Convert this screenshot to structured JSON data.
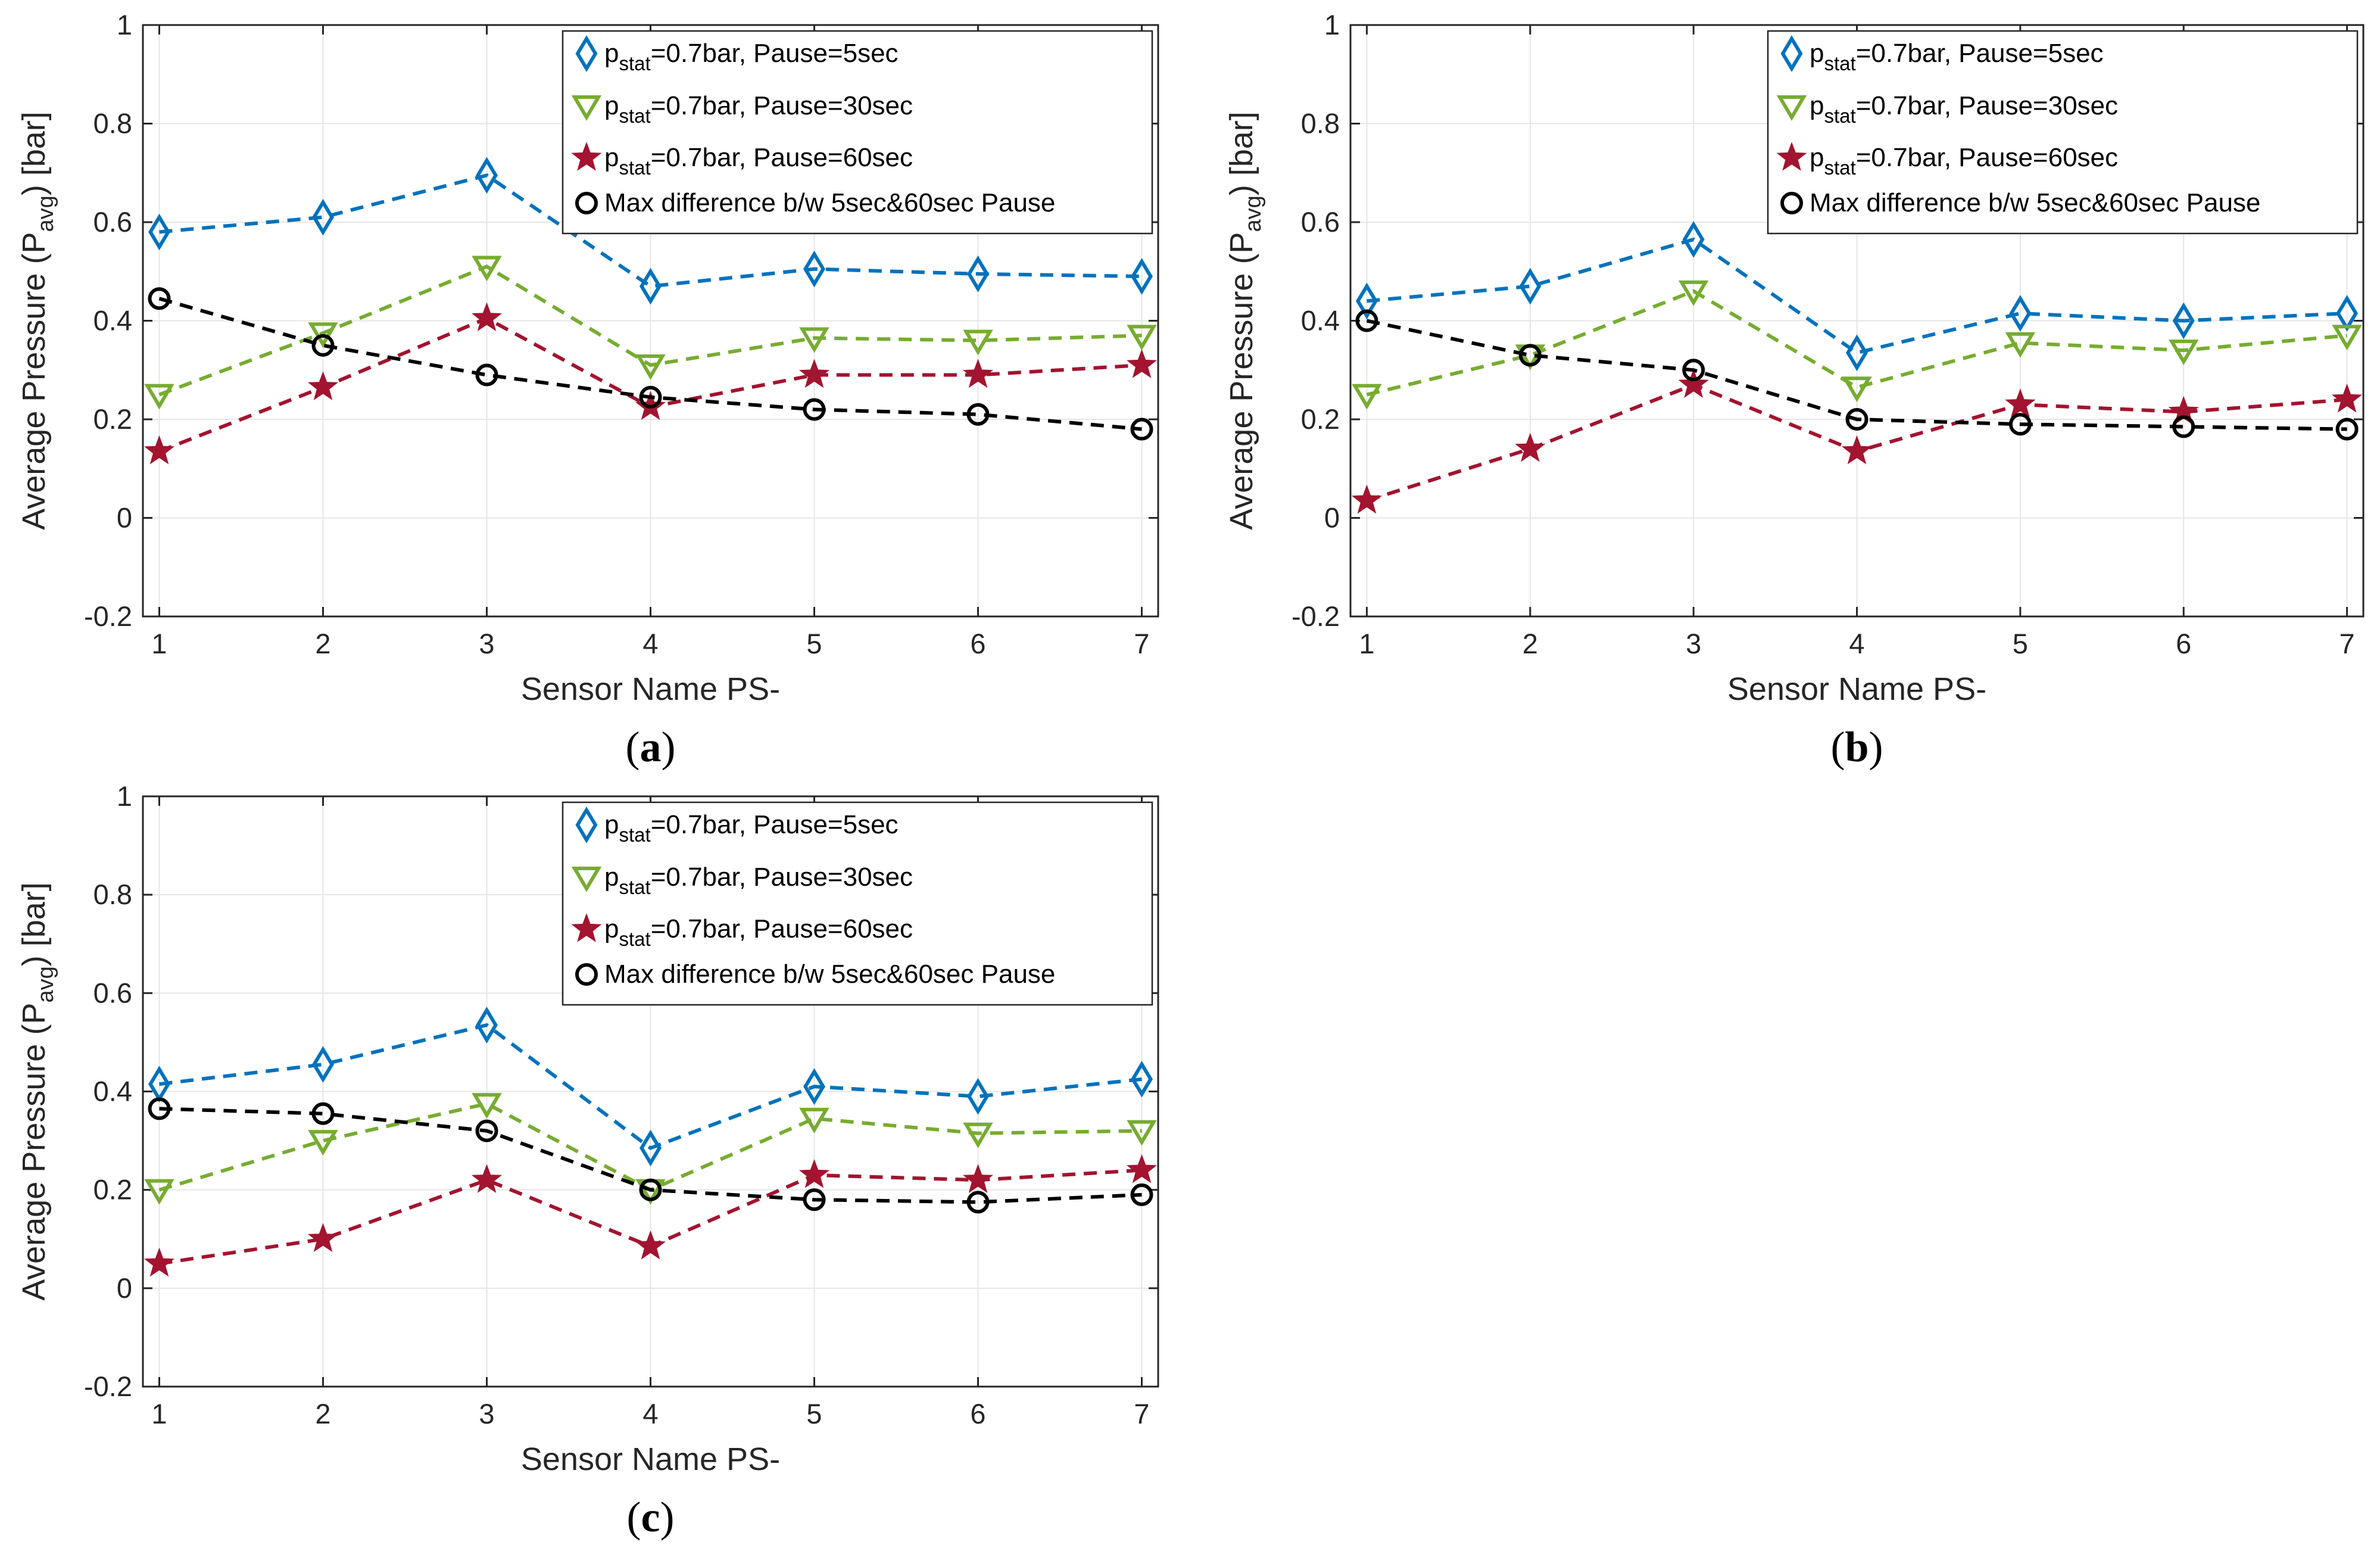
{
  "figure": {
    "series_styles": [
      {
        "color": "#0072BD",
        "marker": "diamond"
      },
      {
        "color": "#77AC30",
        "marker": "triangle-down"
      },
      {
        "color": "#A2142F",
        "marker": "star"
      },
      {
        "color": "#000000",
        "marker": "circle"
      }
    ],
    "legend_placement": "top-right",
    "grid": true,
    "line_style": "dashed"
  },
  "chart_data": [
    {
      "type": "line",
      "caption": "a",
      "xlabel": "Sensor Name PS-",
      "ylabel": {
        "main": "Average Pressure (P",
        "sub": "avg",
        "end": ") [bar]"
      },
      "x": [
        1,
        2,
        3,
        4,
        5,
        6,
        7
      ],
      "xticks": [
        "1",
        "2",
        "3",
        "4",
        "5",
        "6",
        "7"
      ],
      "yticks": [
        "-0.2",
        "0",
        "0.2",
        "0.4",
        "0.6",
        "0.8",
        "1"
      ],
      "xlim": [
        0.9,
        7.1
      ],
      "ylim": [
        -0.2,
        1
      ],
      "series": [
        {
          "name": "p_stat=0.7bar, Pause=5sec",
          "legend": {
            "pre": "p",
            "sub": "stat",
            "post": "=0.7bar, Pause=5sec"
          },
          "values": [
            0.58,
            0.61,
            0.695,
            0.47,
            0.505,
            0.495,
            0.49
          ]
        },
        {
          "name": "p_stat=0.7bar, Pause=30sec",
          "legend": {
            "pre": "p",
            "sub": "stat",
            "post": "=0.7bar, Pause=30sec"
          },
          "values": [
            0.25,
            0.375,
            0.51,
            0.31,
            0.365,
            0.36,
            0.37
          ]
        },
        {
          "name": "p_stat=0.7bar, Pause=60sec",
          "legend": {
            "pre": "p",
            "sub": "stat",
            "post": "=0.7bar, Pause=60sec"
          },
          "values": [
            0.135,
            0.265,
            0.405,
            0.225,
            0.29,
            0.29,
            0.31
          ]
        },
        {
          "name": "Max difference b/w 5sec&60sec Pause",
          "legend": {
            "pre": "Max difference b/w 5sec&60sec Pause",
            "sub": "",
            "post": ""
          },
          "values": [
            0.445,
            0.35,
            0.29,
            0.245,
            0.22,
            0.21,
            0.18
          ]
        }
      ]
    },
    {
      "type": "line",
      "caption": "b",
      "xlabel": "Sensor Name PS-",
      "ylabel": {
        "main": "Average Pressure (P",
        "sub": "avg",
        "end": ") [bar]"
      },
      "x": [
        1,
        2,
        3,
        4,
        5,
        6,
        7
      ],
      "xticks": [
        "1",
        "2",
        "3",
        "4",
        "5",
        "6",
        "7"
      ],
      "yticks": [
        "-0.2",
        "0",
        "0.2",
        "0.4",
        "0.6",
        "0.8",
        "1"
      ],
      "xlim": [
        0.9,
        7.1
      ],
      "ylim": [
        -0.2,
        1
      ],
      "series": [
        {
          "name": "p_stat=0.7bar, Pause=5sec",
          "legend": {
            "pre": "p",
            "sub": "stat",
            "post": "=0.7bar, Pause=5sec"
          },
          "values": [
            0.44,
            0.47,
            0.565,
            0.335,
            0.415,
            0.4,
            0.415
          ]
        },
        {
          "name": "p_stat=0.7bar, Pause=30sec",
          "legend": {
            "pre": "p",
            "sub": "stat",
            "post": "=0.7bar, Pause=30sec"
          },
          "values": [
            0.25,
            0.33,
            0.46,
            0.265,
            0.355,
            0.34,
            0.37
          ]
        },
        {
          "name": "p_stat=0.7bar, Pause=60sec",
          "legend": {
            "pre": "p",
            "sub": "stat",
            "post": "=0.7bar, Pause=60sec"
          },
          "values": [
            0.035,
            0.14,
            0.27,
            0.135,
            0.23,
            0.215,
            0.24
          ]
        },
        {
          "name": "Max difference b/w 5sec&60sec Pause",
          "legend": {
            "pre": "Max difference b/w 5sec&60sec Pause",
            "sub": "",
            "post": ""
          },
          "values": [
            0.4,
            0.33,
            0.3,
            0.2,
            0.19,
            0.185,
            0.18
          ]
        }
      ]
    },
    {
      "type": "line",
      "caption": "c",
      "xlabel": "Sensor Name PS-",
      "ylabel": {
        "main": "Average Pressure (P",
        "sub": "avg",
        "end": ") [bar]"
      },
      "x": [
        1,
        2,
        3,
        4,
        5,
        6,
        7
      ],
      "xticks": [
        "1",
        "2",
        "3",
        "4",
        "5",
        "6",
        "7"
      ],
      "yticks": [
        "-0.2",
        "0",
        "0.2",
        "0.4",
        "0.6",
        "0.8",
        "1"
      ],
      "xlim": [
        0.9,
        7.1
      ],
      "ylim": [
        -0.2,
        1
      ],
      "series": [
        {
          "name": "p_stat=0.7bar, Pause=5sec",
          "legend": {
            "pre": "p",
            "sub": "stat",
            "post": "=0.7bar, Pause=5sec"
          },
          "values": [
            0.415,
            0.455,
            0.535,
            0.285,
            0.41,
            0.39,
            0.425
          ]
        },
        {
          "name": "p_stat=0.7bar, Pause=30sec",
          "legend": {
            "pre": "p",
            "sub": "stat",
            "post": "=0.7bar, Pause=30sec"
          },
          "values": [
            0.2,
            0.3,
            0.375,
            0.2,
            0.345,
            0.315,
            0.32
          ]
        },
        {
          "name": "p_stat=0.7bar, Pause=60sec",
          "legend": {
            "pre": "p",
            "sub": "stat",
            "post": "=0.7bar, Pause=60sec"
          },
          "values": [
            0.05,
            0.1,
            0.22,
            0.085,
            0.23,
            0.22,
            0.24
          ]
        },
        {
          "name": "Max difference b/w 5sec&60sec Pause",
          "legend": {
            "pre": "Max difference b/w 5sec&60sec Pause",
            "sub": "",
            "post": ""
          },
          "values": [
            0.365,
            0.355,
            0.32,
            0.2,
            0.18,
            0.175,
            0.19
          ]
        }
      ]
    }
  ]
}
